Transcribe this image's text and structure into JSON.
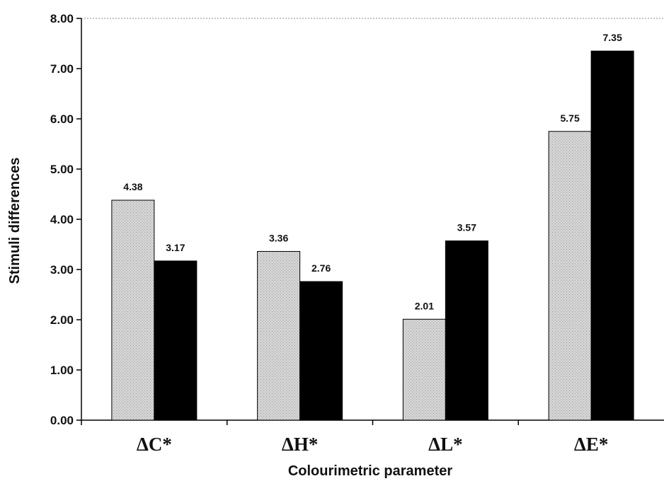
{
  "chart_data": {
    "type": "bar",
    "title": "",
    "xlabel": "Colourimetric parameter",
    "ylabel": "Stimuli differences",
    "ylim": [
      0,
      8
    ],
    "y_ticks": [
      "0.00",
      "1.00",
      "2.00",
      "3.00",
      "4.00",
      "5.00",
      "6.00",
      "7.00",
      "8.00"
    ],
    "categories": [
      "ΔC*",
      "ΔH*",
      "ΔL*",
      "ΔE*"
    ],
    "series": [
      {
        "values": [
          4.38,
          3.36,
          2.01,
          5.75
        ],
        "labels": [
          "4.38",
          "3.36",
          "2.01",
          "5.75"
        ],
        "color": "#cfcfcf"
      },
      {
        "values": [
          3.17,
          2.76,
          3.57,
          7.35
        ],
        "labels": [
          "3.17",
          "2.76",
          "3.57",
          "7.35"
        ],
        "color": "#000000"
      }
    ],
    "grid": false,
    "legend": "none"
  }
}
